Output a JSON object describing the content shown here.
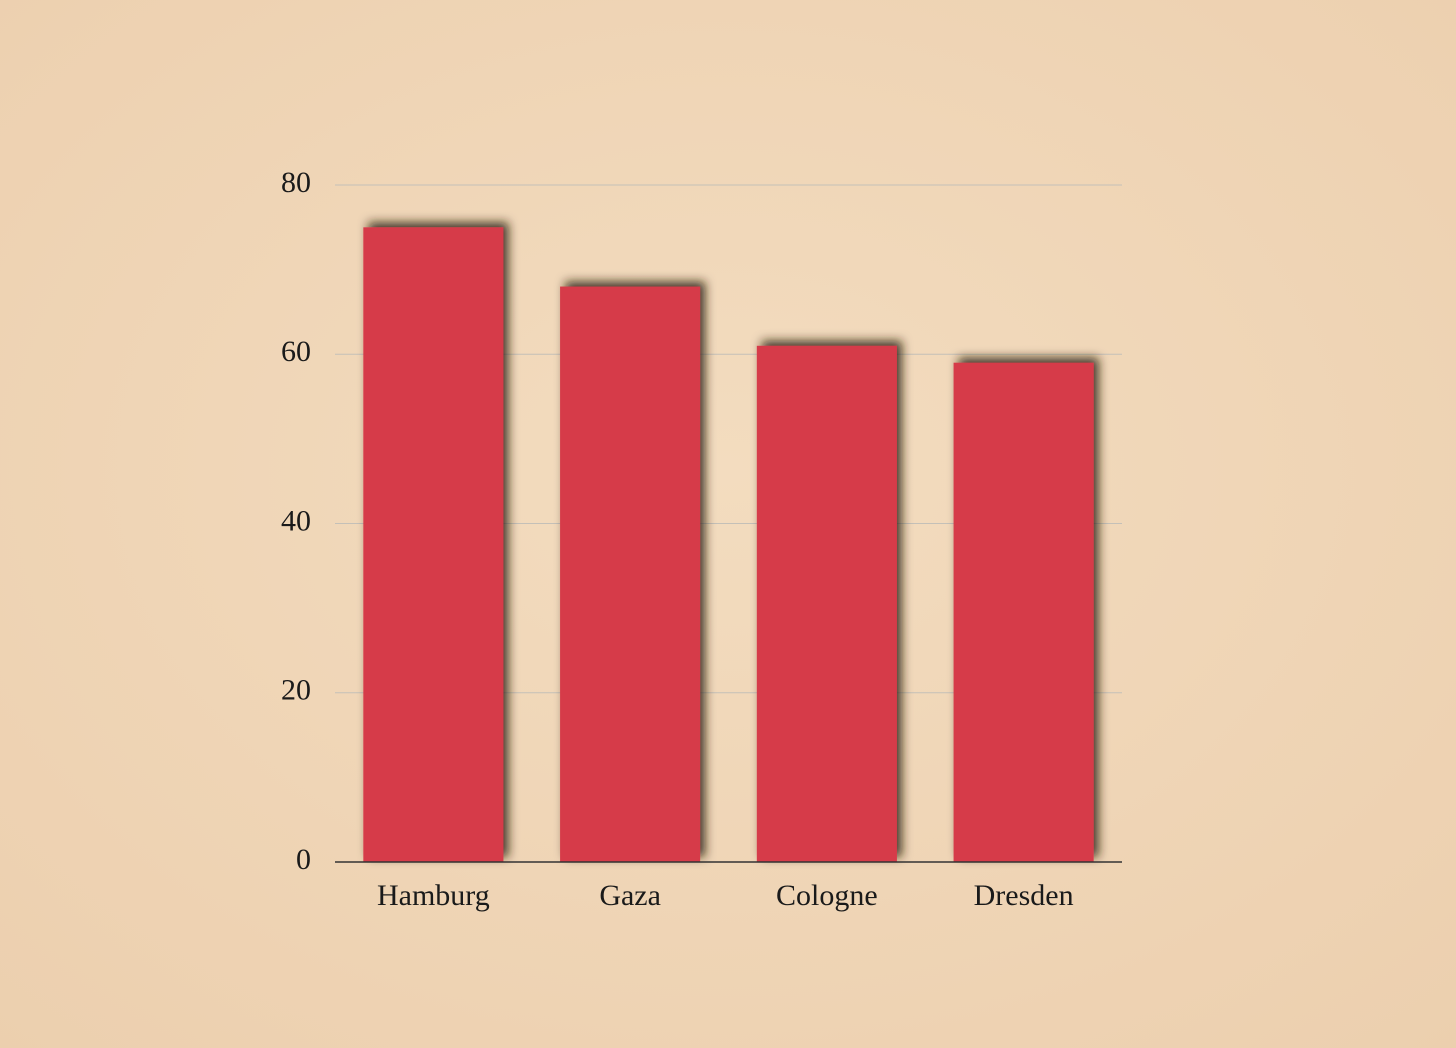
{
  "chart_data": {
    "type": "bar",
    "categories": [
      "Hamburg",
      "Gaza",
      "Cologne",
      "Dresden"
    ],
    "values": [
      75,
      68,
      61,
      59
    ],
    "color": "#d63a48",
    "ylim": [
      0,
      80
    ],
    "yticks": [
      0,
      20,
      40,
      60,
      80
    ],
    "grid": true
  }
}
